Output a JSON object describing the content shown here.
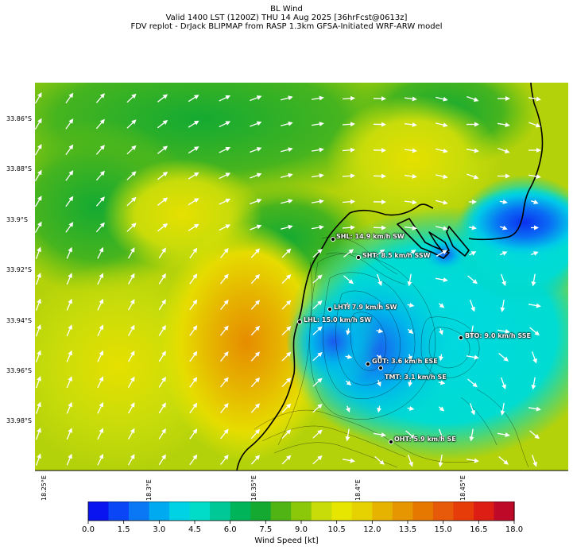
{
  "title": {
    "line1": "BL Wind",
    "line2": "Valid 1400 LST (1200Z) THU 14 Aug 2025 [36hrFcst@0613z]",
    "line3": "FDV replot - DrJack BLIPMAP from RASP 1.3km GFSA-Initiated WRF-ARW model"
  },
  "lat_labels": [
    "33.86°S",
    "33.88°S",
    "33.9°S",
    "33.92°S",
    "33.94°S",
    "33.96°S",
    "33.98°S"
  ],
  "lon_labels": [
    "18.25°E",
    "18.3°E",
    "18.35°E",
    "18.4°E",
    "18.45°E"
  ],
  "stations": [
    {
      "code": "SHL",
      "label": "SHL: 14.9 km/h SW"
    },
    {
      "code": "SHT",
      "label": "SHT: 8.5 km/h SSW"
    },
    {
      "code": "LHT",
      "label": "LHT: 7.9 km/h SW"
    },
    {
      "code": "LHL",
      "label": "LHL: 15.0 km/h SW"
    },
    {
      "code": "BTO",
      "label": "BTO: 9.0 km/h SSE"
    },
    {
      "code": "GUT",
      "label": "GUT: 3.6 km/h ESE"
    },
    {
      "code": "TMT",
      "label": "TMT: 3.1 km/h SE"
    },
    {
      "code": "OHT",
      "label": "OHT: 5.9 km/h SE"
    }
  ],
  "colorbar": {
    "label": "Wind Speed [kt]",
    "ticks": [
      "0.0",
      "1.5",
      "3.0",
      "4.5",
      "6.0",
      "7.5",
      "9.0",
      "10.5",
      "12.0",
      "13.5",
      "15.0",
      "16.5",
      "18.0"
    ],
    "colors": [
      "#0a14f0",
      "#0a46f5",
      "#0a78f5",
      "#00aaf0",
      "#00d2e6",
      "#00dcc8",
      "#00c896",
      "#00b45a",
      "#14aa32",
      "#50b414",
      "#8cc80a",
      "#c8dc0a",
      "#e6e600",
      "#e6d200",
      "#e6b400",
      "#e69600",
      "#e67800",
      "#e65a0a",
      "#e63c0a",
      "#dc1e14",
      "#be0a28"
    ]
  }
}
